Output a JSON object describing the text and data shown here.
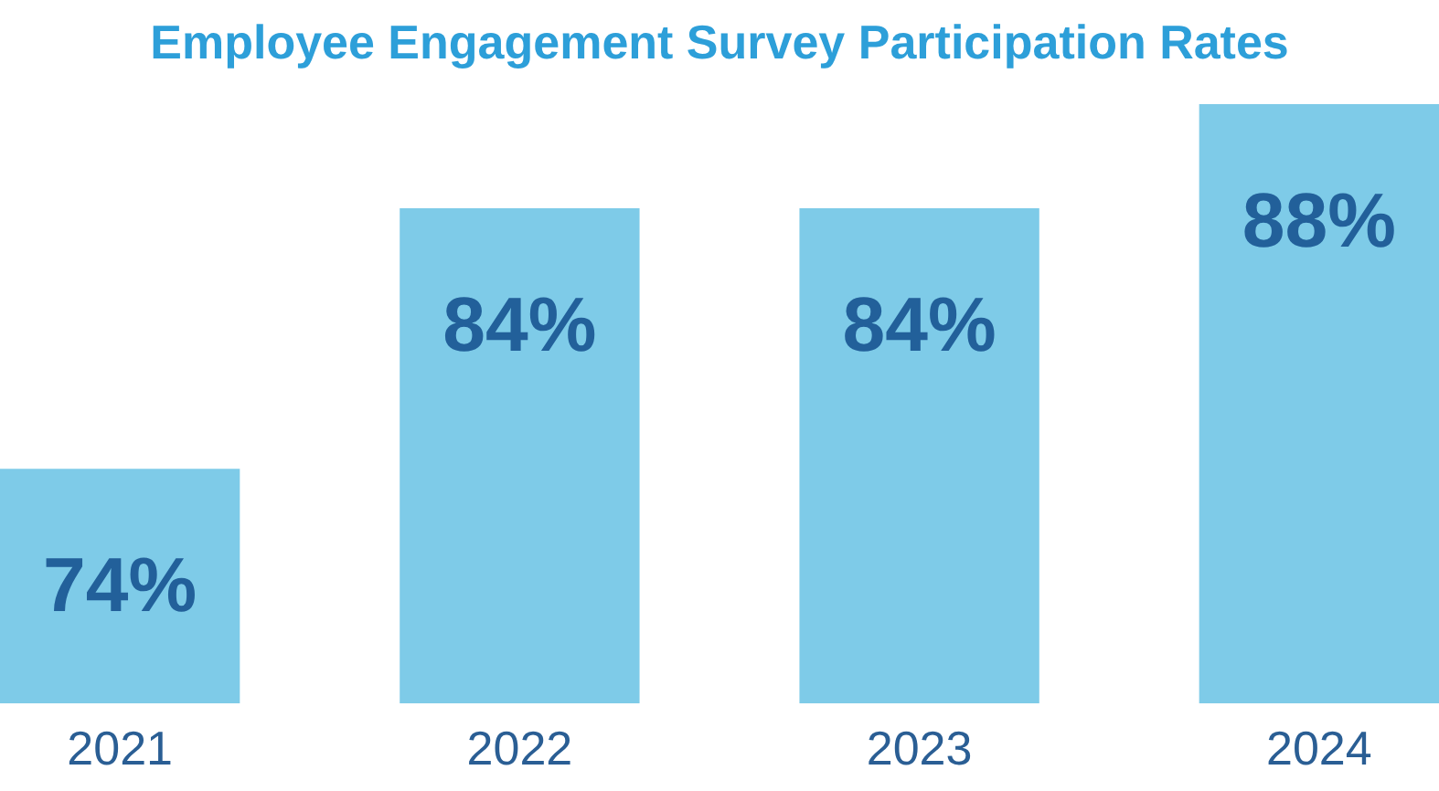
{
  "chart_data": {
    "type": "bar",
    "title": "Employee Engagement Survey Participation Rates",
    "categories": [
      "2021",
      "2022",
      "2023",
      "2024"
    ],
    "values": [
      74,
      84,
      84,
      88
    ],
    "color": "#7ecbe8",
    "value_labels": [
      "74%",
      "84%",
      "84%",
      "88%"
    ],
    "ylim": [
      65,
      88
    ],
    "tick_labels": "x"
  }
}
